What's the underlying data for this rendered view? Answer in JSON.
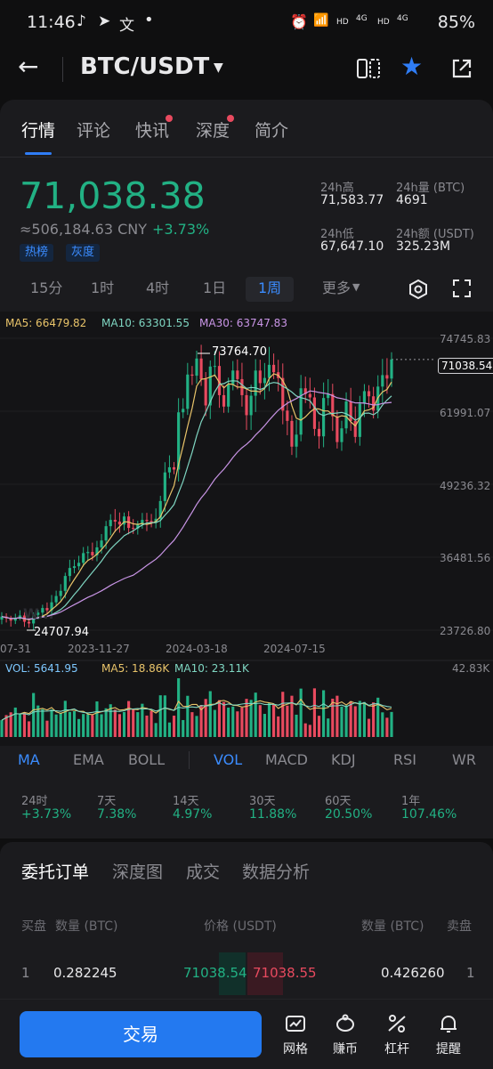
{
  "status_bar": {
    "time": "11:46",
    "left_icons": [
      "tiktok-icon",
      "telegram-icon",
      "translate-icon",
      "dot"
    ],
    "battery": "85%",
    "net_labels": [
      "HD",
      "4G",
      "HD",
      "4G"
    ]
  },
  "header": {
    "pair": "BTC/USDT"
  },
  "tabs": [
    {
      "label": "行情",
      "active": true
    },
    {
      "label": "评论",
      "active": false
    },
    {
      "label": "快讯",
      "active": false,
      "dot": true
    },
    {
      "label": "深度",
      "active": false,
      "dot": true
    },
    {
      "label": "简介",
      "active": false
    }
  ],
  "price": {
    "last": "71,038.38",
    "cny": "≈506,184.63 CNY",
    "change": "+3.73%",
    "tags": [
      "热榜",
      "灰度"
    ]
  },
  "stats": {
    "high_label": "24h高",
    "high_value": "71,583.77",
    "vol_btc_label": "24h量 (BTC)",
    "vol_btc_value": "4691",
    "low_label": "24h低",
    "low_value": "67,647.10",
    "vol_usdt_label": "24h额 (USDT)",
    "vol_usdt_value": "325.23M"
  },
  "periods": {
    "items": [
      "15分",
      "1时",
      "4时",
      "1日",
      "1周"
    ],
    "active": "1周",
    "more": "更多"
  },
  "ma_legend": {
    "ma5": "MA5: 66479.82",
    "ma10": "MA10: 63301.55",
    "ma30": "MA30: 63747.83"
  },
  "chart_data": {
    "type": "candlestick",
    "y_ticks": [
      "74745.83",
      "61991.07",
      "49236.32",
      "36481.56",
      "23726.80"
    ],
    "x_ticks": [
      "07-31",
      "2023-11-27",
      "2024-03-18",
      "2024-07-15"
    ],
    "high_marker": "73764.70",
    "low_marker": "24707.94",
    "last_price_label": "71038.54",
    "ylim": [
      23726.8,
      74745.83
    ],
    "closes": [
      26100,
      25800,
      25400,
      25900,
      26300,
      25200,
      24900,
      26400,
      26800,
      27600,
      27200,
      28600,
      29700,
      30600,
      33200,
      34600,
      34900,
      35500,
      37200,
      37400,
      36800,
      38200,
      39400,
      41900,
      43000,
      42700,
      42200,
      43600,
      41600,
      41500,
      42200,
      43000,
      42800,
      42500,
      43200,
      46300,
      51300,
      52200,
      51800,
      61800,
      62400,
      68400,
      68200,
      71200,
      67600,
      63000,
      69800,
      69900,
      64800,
      62800,
      66700,
      69100,
      67600,
      64800,
      61300,
      64700,
      69100,
      66900,
      67800,
      70100,
      68800,
      67800,
      62100,
      60300,
      55800,
      57900,
      66000,
      65000,
      64400,
      58900,
      57600,
      64300,
      65000,
      61100,
      56600,
      59000,
      63700,
      60300,
      57500,
      63300,
      65500,
      64600,
      62100,
      66300,
      68300,
      67700,
      71038
    ],
    "volume": {
      "vol_label": "VOL: 5641.95",
      "ma5_label": "MA5: 18.86K",
      "ma10_label": "MA10: 23.11K",
      "max_label": "42.83K"
    },
    "watermark": "W..."
  },
  "indicators": {
    "main": [
      "MA",
      "EMA",
      "BOLL"
    ],
    "sub": [
      "VOL",
      "MACD",
      "KDJ",
      "RSI",
      "WR"
    ],
    "active_main": "MA",
    "active_sub": "VOL"
  },
  "performance": [
    {
      "label": "24时",
      "value": "+3.73%"
    },
    {
      "label": "7天",
      "value": "7.38%"
    },
    {
      "label": "14天",
      "value": "4.97%"
    },
    {
      "label": "30天",
      "value": "11.88%"
    },
    {
      "label": "60天",
      "value": "20.50%"
    },
    {
      "label": "1年",
      "value": "107.46%"
    }
  ],
  "orderbook": {
    "tabs": [
      "委托订单",
      "深度图",
      "成交",
      "数据分析"
    ],
    "headers": {
      "buy": "买盘",
      "qty_left": "数量 (BTC)",
      "price": "价格 (USDT)",
      "qty_right": "数量 (BTC)",
      "sell": "卖盘"
    },
    "row": {
      "idx_left": "1",
      "qty_left": "0.282245",
      "bid": "71038.54",
      "ask": "71038.55",
      "qty_right": "0.426260",
      "idx_right": "1"
    }
  },
  "bottom": {
    "trade": "交易",
    "icons": [
      {
        "icon": "grid-icon",
        "label": "网格"
      },
      {
        "icon": "piggy-icon",
        "label": "赚币"
      },
      {
        "icon": "leverage-icon",
        "label": "杠杆"
      },
      {
        "icon": "bell-icon",
        "label": "提醒"
      }
    ]
  }
}
